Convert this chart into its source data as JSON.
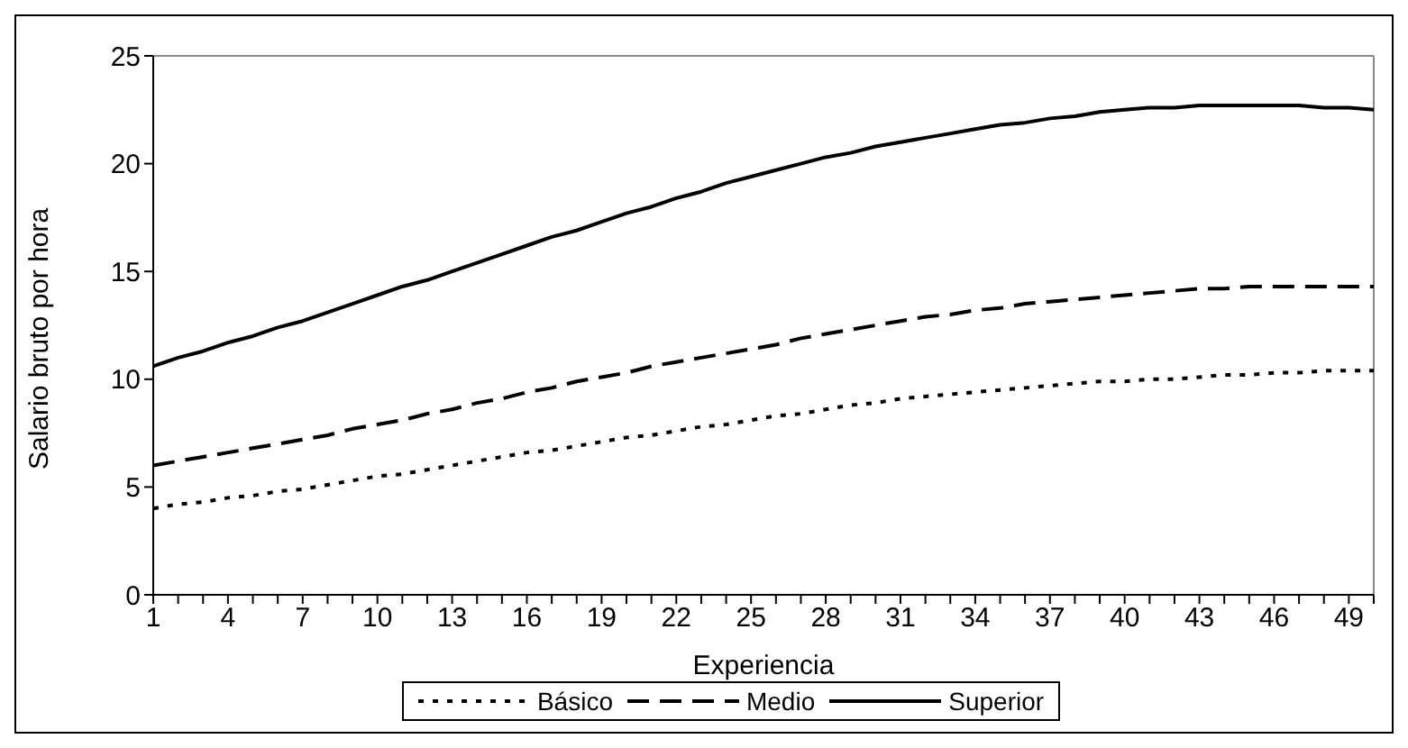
{
  "chart_data": {
    "type": "line",
    "xlabel": "Experiencia",
    "ylabel": "Salario bruto por hora",
    "categories": [
      "1",
      null,
      null,
      "4",
      null,
      null,
      "7",
      null,
      null,
      "10",
      null,
      null,
      "13",
      null,
      null,
      "16",
      null,
      null,
      "19",
      null,
      null,
      "22",
      null,
      null,
      "25",
      null,
      null,
      "28",
      null,
      null,
      "31",
      null,
      null,
      "34",
      null,
      null,
      "37",
      null,
      null,
      "40",
      null,
      null,
      "43",
      null,
      null,
      "46",
      null,
      null,
      "49",
      null
    ],
    "series": [
      {
        "name": "Básico",
        "color": "#000000",
        "line_style": "dotted",
        "values": [
          4.0,
          4.2,
          4.3,
          4.5,
          4.6,
          4.8,
          4.9,
          5.1,
          5.3,
          5.5,
          5.6,
          5.8,
          6.0,
          6.2,
          6.4,
          6.6,
          6.7,
          6.9,
          7.1,
          7.3,
          7.4,
          7.6,
          7.8,
          7.9,
          8.1,
          8.3,
          8.4,
          8.6,
          8.8,
          8.9,
          9.1,
          9.2,
          9.3,
          9.4,
          9.5,
          9.6,
          9.7,
          9.8,
          9.9,
          9.9,
          10.0,
          10.0,
          10.1,
          10.2,
          10.2,
          10.3,
          10.3,
          10.4,
          10.4,
          10.4
        ]
      },
      {
        "name": "Medio",
        "color": "#000000",
        "line_style": "dashed",
        "values": [
          6.0,
          6.2,
          6.4,
          6.6,
          6.8,
          7.0,
          7.2,
          7.4,
          7.7,
          7.9,
          8.1,
          8.4,
          8.6,
          8.9,
          9.1,
          9.4,
          9.6,
          9.9,
          10.1,
          10.3,
          10.6,
          10.8,
          11.0,
          11.2,
          11.4,
          11.6,
          11.9,
          12.1,
          12.3,
          12.5,
          12.7,
          12.9,
          13.0,
          13.2,
          13.3,
          13.5,
          13.6,
          13.7,
          13.8,
          13.9,
          14.0,
          14.1,
          14.2,
          14.2,
          14.3,
          14.3,
          14.3,
          14.3,
          14.3,
          14.3
        ]
      },
      {
        "name": "Superior",
        "color": "#000000",
        "line_style": "solid",
        "values": [
          10.6,
          11.0,
          11.3,
          11.7,
          12.0,
          12.4,
          12.7,
          13.1,
          13.5,
          13.9,
          14.3,
          14.6,
          15.0,
          15.4,
          15.8,
          16.2,
          16.6,
          16.9,
          17.3,
          17.7,
          18.0,
          18.4,
          18.7,
          19.1,
          19.4,
          19.7,
          20.0,
          20.3,
          20.5,
          20.8,
          21.0,
          21.2,
          21.4,
          21.6,
          21.8,
          21.9,
          22.1,
          22.2,
          22.4,
          22.5,
          22.6,
          22.6,
          22.7,
          22.7,
          22.7,
          22.7,
          22.7,
          22.6,
          22.6,
          22.5
        ]
      }
    ],
    "ylim": [
      0,
      25
    ],
    "yticks": [
      0,
      5,
      10,
      15,
      20,
      25
    ],
    "grid": false,
    "legend": "bottom",
    "marker": "none"
  }
}
